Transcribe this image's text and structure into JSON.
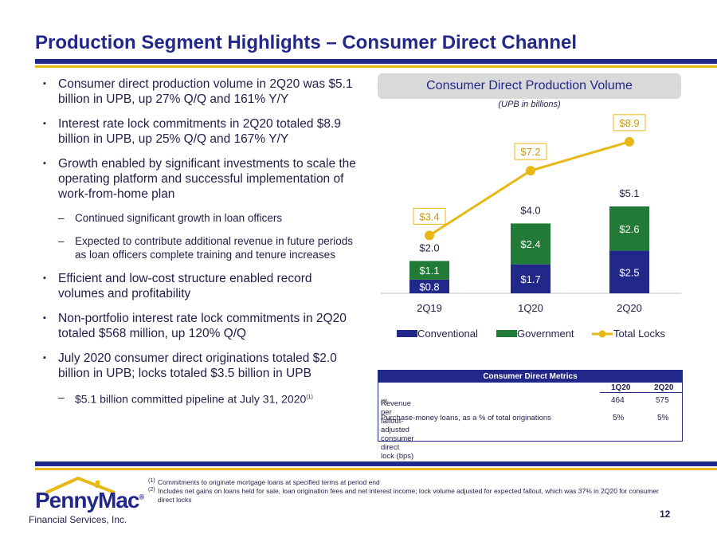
{
  "title": "Production Segment Highlights – Consumer Direct Channel",
  "bullet_marker": "▪",
  "sub_marker": "–",
  "bullets": [
    {
      "text": "Consumer direct production volume in 2Q20 was $5.1 billion in UPB, up 27% Q/Q and 161% Y/Y"
    },
    {
      "text": "Interest rate lock commitments in 2Q20 totaled $8.9 billion in UPB, up 25% Q/Q and 167% Y/Y"
    },
    {
      "text": "Growth enabled by significant investments to scale the operating platform and successful implementation of work-from-home plan"
    },
    {
      "sub1": "Continued significant growth in loan officers"
    },
    {
      "sub2": "Expected to contribute additional revenue in future periods as loan officers complete training and tenure increases"
    },
    {
      "text": "Efficient and low-cost structure enabled record volumes and profitability"
    },
    {
      "text": "Non-portfolio interest rate lock commitments in 2Q20 totaled $568 million, up 120% Q/Q"
    },
    {
      "text": "July 2020 consumer direct originations totaled $2.0 billion in UPB; locks totaled $3.5 billion in UPB"
    },
    {
      "sub3": "$5.1 billion committed pipeline at July 31, 2020",
      "sub3_sup": "(1)"
    }
  ],
  "chart_header": "Consumer Direct Production Volume",
  "chart_subtitle": "(UPB in billions)",
  "chart_data": {
    "type": "bar",
    "categories": [
      "2Q19",
      "1Q20",
      "2Q20"
    ],
    "series": [
      {
        "name": "Conventional",
        "values": [
          0.8,
          1.7,
          2.5
        ],
        "labels": [
          "$0.8",
          "$1.7",
          "$2.5"
        ],
        "color": "#22288a"
      },
      {
        "name": "Government",
        "values": [
          1.1,
          2.4,
          2.6
        ],
        "labels": [
          "$1.1",
          "$2.4",
          "$2.6"
        ],
        "color": "#217a36"
      },
      {
        "name": "Total Locks",
        "type": "line",
        "values": [
          3.4,
          7.2,
          8.9
        ],
        "labels": [
          "$3.4",
          "$7.2",
          "$8.9"
        ],
        "color": "#e8b817"
      }
    ],
    "totals": [
      "$2.0",
      "$4.0",
      "$5.1"
    ],
    "ylim": [
      0,
      9.5
    ],
    "legend": "bottom"
  },
  "table": {
    "title": "Consumer Direct Metrics",
    "columns": [
      "1Q20",
      "2Q20"
    ],
    "rows": [
      {
        "label": "Revenue per fallout-adjusted consumer direct lock (bps)",
        "sup": "(2)",
        "q1": "464",
        "q2": "575"
      },
      {
        "label": "Purchase-money loans, as a % of total originations",
        "q1": "5%",
        "q2": "5%"
      }
    ]
  },
  "footnotes": [
    {
      "num": "(1)",
      "text": "Commitments to originate mortgage loans at specified terms at period end"
    },
    {
      "num": "(2)",
      "text": "Includes net gains on loans held for sale, loan origination fees and net interest income; lock volume adjusted for expected fallout, which was 37% in 2Q20 for consumer direct locks"
    }
  ],
  "logo": {
    "name": "PennyMac",
    "reg": "®",
    "sub": "Financial Services, Inc."
  },
  "page_number": "12",
  "colors": {
    "brand_blue": "#22288a",
    "gold": "#e8b817",
    "green": "#217a36"
  }
}
